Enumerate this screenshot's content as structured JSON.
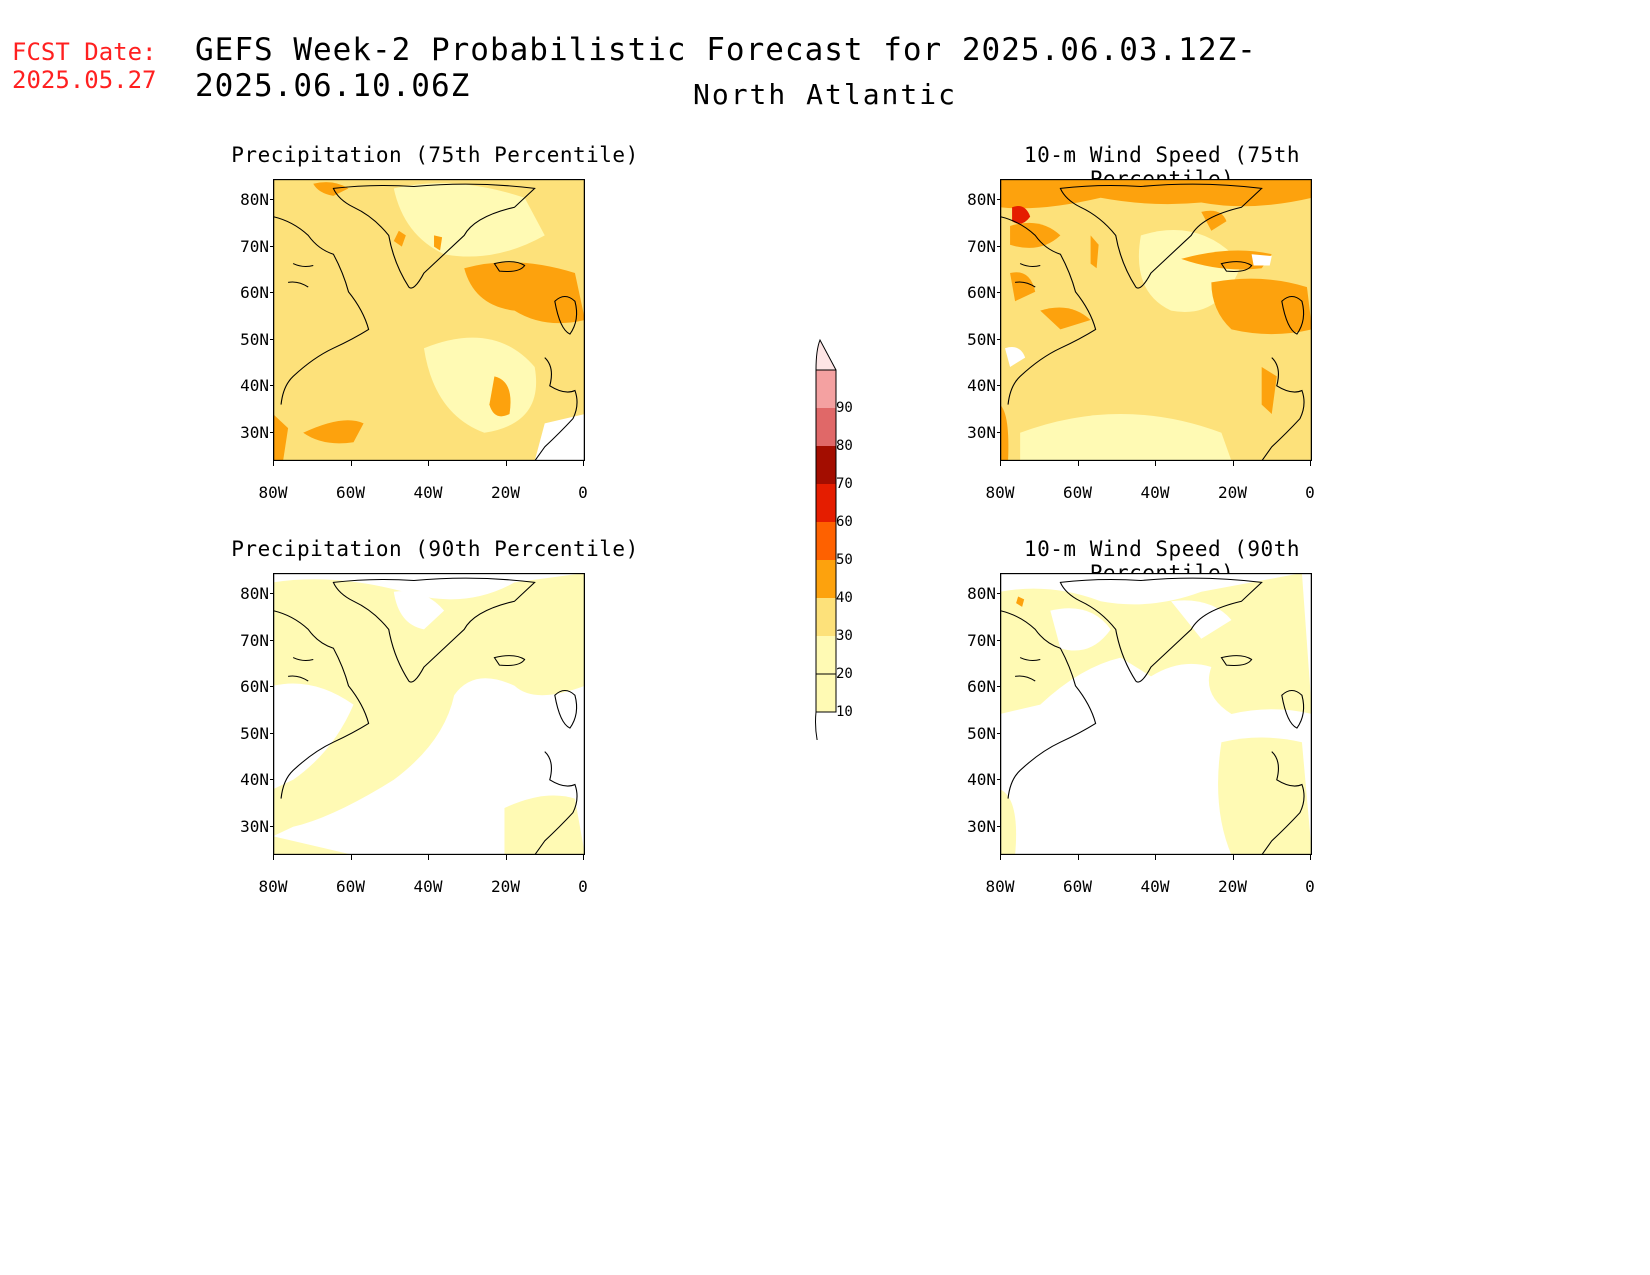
{
  "header": {
    "fcst_label": "FCST Date:",
    "fcst_date": "2025.05.27",
    "title": "GEFS Week-2 Probabilistic Forecast for 2025.06.03.12Z-2025.06.10.06Z",
    "subtitle": "North Atlantic"
  },
  "axes": {
    "lat_labels": [
      "80N",
      "70N",
      "60N",
      "50N",
      "40N",
      "30N"
    ],
    "lon_labels": [
      "80W",
      "60W",
      "40W",
      "20W",
      "0"
    ]
  },
  "panels": [
    {
      "title": "Precipitation (75th Percentile)",
      "base_color": "#fde17a",
      "level": "high"
    },
    {
      "title": "10-m Wind Speed (75th Percentile)",
      "base_color": "#fde17a",
      "level": "high"
    },
    {
      "title": "Precipitation (90th Percentile)",
      "base_color": "#ffffff",
      "level": "low"
    },
    {
      "title": "10-m Wind Speed (90th Percentile)",
      "base_color": "#ffffff",
      "level": "low"
    }
  ],
  "legend": {
    "levels": [
      "10",
      "20",
      "30",
      "40",
      "50",
      "60",
      "70",
      "80",
      "90"
    ],
    "colors": [
      "#fffab4",
      "#fde17a",
      "#fda20d",
      "#fe6100",
      "#e51d00",
      "#a30d00",
      "#e06868",
      "#f4a1a1",
      "#fde5e5"
    ]
  }
}
